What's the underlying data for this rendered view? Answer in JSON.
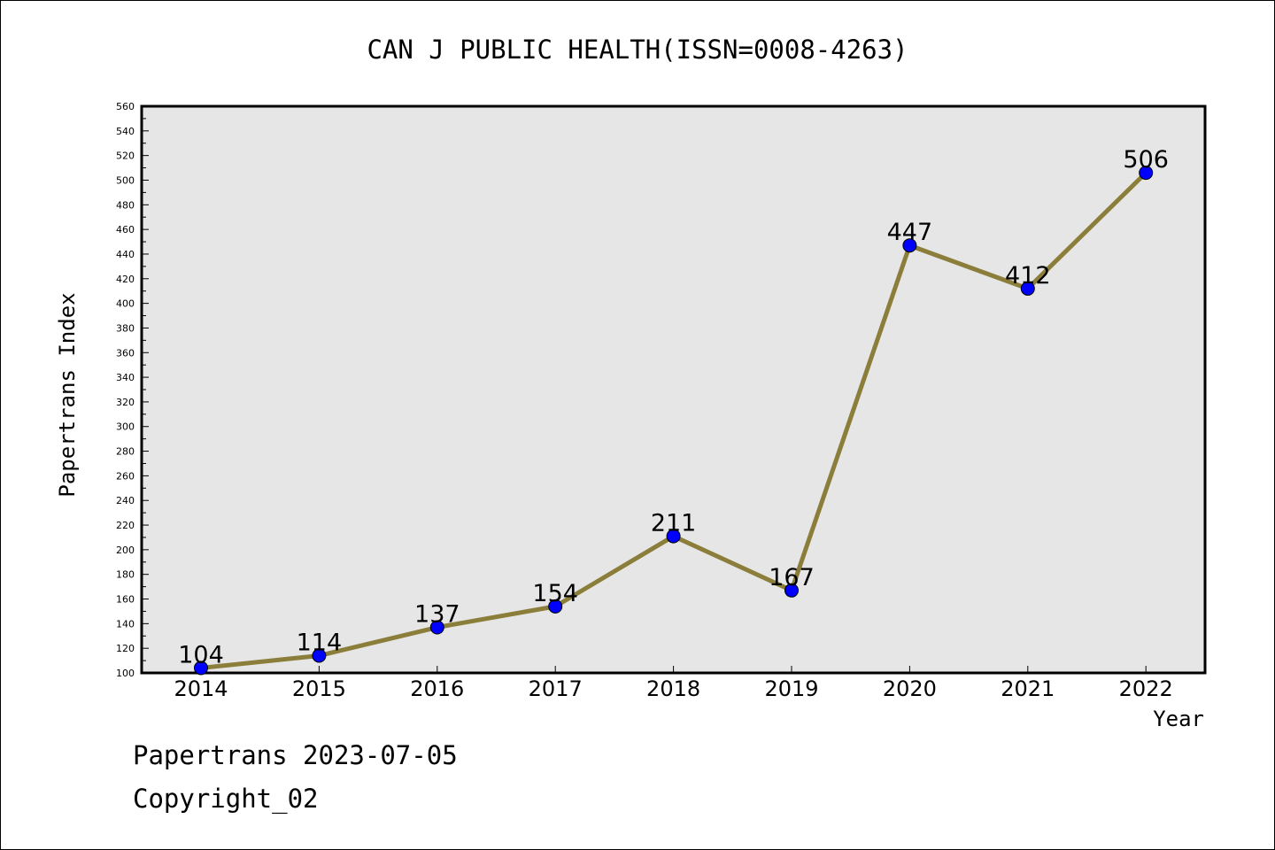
{
  "chart_data": {
    "type": "line",
    "title": "CAN J PUBLIC HEALTH(ISSN=0008-4263)",
    "xlabel": "Year",
    "ylabel": "Papertrans Index",
    "categories": [
      "2014",
      "2015",
      "2016",
      "2017",
      "2018",
      "2019",
      "2020",
      "2021",
      "2022"
    ],
    "values": [
      104,
      114,
      137,
      154,
      211,
      167,
      447,
      412,
      506
    ],
    "data_labels": [
      "104",
      "114",
      "137",
      "154",
      "211",
      "167",
      "447",
      "412",
      "506"
    ],
    "ylim": [
      100,
      560
    ],
    "yticks": [
      "100",
      "120",
      "140",
      "160",
      "180",
      "200",
      "220",
      "240",
      "260",
      "280",
      "300",
      "320",
      "340",
      "360",
      "380",
      "400",
      "420",
      "440",
      "460",
      "480",
      "500",
      "520",
      "540",
      "560"
    ],
    "grid": false,
    "legend": "none",
    "colors": {
      "line": "#8b7d3a",
      "marker": "#0000ff",
      "plot_background": "#e6e6e6"
    }
  },
  "footer": {
    "line1": "Papertrans 2023-07-05",
    "line2": "Copyright_02"
  }
}
